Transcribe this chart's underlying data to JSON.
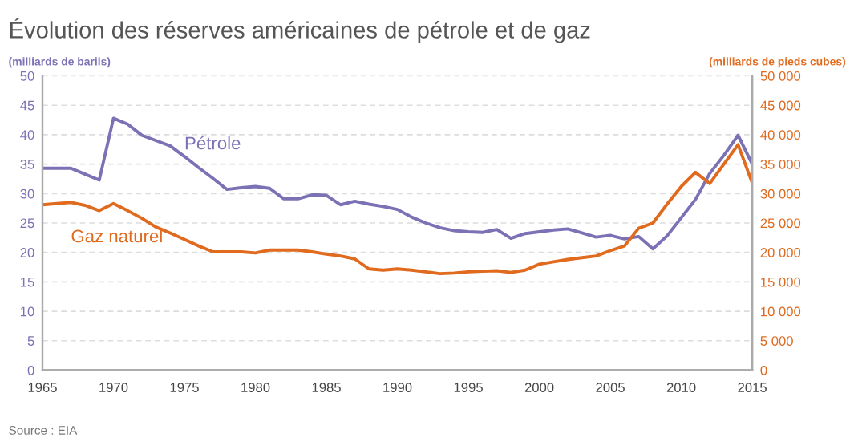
{
  "chart_data": {
    "type": "line",
    "title": "Évolution des réserves américaines de pétrole et de gaz",
    "ylabel": "(milliards de barils)",
    "y2label": "(milliards de pieds cubes)",
    "annotations": [
      "Source : EIA"
    ],
    "x": [
      1965,
      1966,
      1967,
      1968,
      1969,
      1970,
      1971,
      1972,
      1973,
      1974,
      1975,
      1976,
      1977,
      1978,
      1979,
      1980,
      1981,
      1982,
      1983,
      1984,
      1985,
      1986,
      1987,
      1988,
      1989,
      1990,
      1991,
      1992,
      1993,
      1994,
      1995,
      1996,
      1997,
      1998,
      1999,
      2000,
      2001,
      2002,
      2003,
      2004,
      2005,
      2006,
      2007,
      2008,
      2009,
      2010,
      2011,
      2012,
      2013,
      2014,
      2015
    ],
    "series": [
      {
        "name": "Pétrole",
        "color": "#7b72b5",
        "values": [
          34.3,
          34.3,
          34.3,
          33.3,
          32.3,
          42.8,
          41.8,
          39.9,
          39.0,
          38.1,
          36.3,
          34.4,
          32.6,
          30.7,
          31.0,
          31.2,
          30.9,
          29.1,
          29.1,
          29.8,
          29.7,
          28.1,
          28.7,
          28.2,
          27.8,
          27.3,
          26.0,
          25.0,
          24.2,
          23.7,
          23.5,
          23.4,
          23.9,
          22.4,
          23.2,
          23.5,
          23.8,
          24.0,
          23.3,
          22.6,
          22.9,
          22.3,
          22.7,
          20.6,
          22.8,
          25.9,
          29.0,
          33.4,
          36.5,
          39.9,
          35.0
        ]
      },
      {
        "name": "Gaz naturel",
        "color": "#e06a1e",
        "axis": "y2",
        "values": [
          28100,
          28300,
          28500,
          28000,
          27100,
          28300,
          27100,
          25800,
          24300,
          23300,
          22200,
          21100,
          20100,
          20100,
          20100,
          19900,
          20400,
          20400,
          20400,
          20100,
          19700,
          19400,
          18900,
          17200,
          17000,
          17200,
          17000,
          16700,
          16400,
          16500,
          16700,
          16800,
          16900,
          16600,
          17000,
          18000,
          18400,
          18800,
          19100,
          19400,
          20300,
          21100,
          24100,
          25000,
          28200,
          31200,
          33600,
          31700,
          35000,
          38300,
          31800
        ]
      }
    ],
    "xlim": [
      1965,
      2015
    ],
    "xticks": [
      1965,
      1970,
      1975,
      1980,
      1985,
      1990,
      1995,
      2000,
      2005,
      2010,
      2015
    ],
    "ylim": [
      0,
      50
    ],
    "yticks": [
      0,
      5,
      10,
      15,
      20,
      25,
      30,
      35,
      40,
      45,
      50
    ],
    "y2lim": [
      0,
      50000
    ],
    "y2ticks": [
      0,
      {
        "value": 5000,
        "label": "5 000"
      },
      {
        "value": 10000,
        "label": "10 000"
      },
      {
        "value": 15000,
        "label": "15 000"
      },
      {
        "value": 20000,
        "label": "20 000"
      },
      {
        "value": 25000,
        "label": "25 000"
      },
      {
        "value": 30000,
        "label": "30 000"
      },
      {
        "value": 35000,
        "label": "35 000"
      },
      {
        "value": 40000,
        "label": "40 000"
      },
      {
        "value": 45000,
        "label": "45 000"
      },
      {
        "value": 50000,
        "label": "50 000"
      }
    ],
    "grid": "y",
    "line_style": "solid",
    "marker": "none",
    "legend": false
  }
}
